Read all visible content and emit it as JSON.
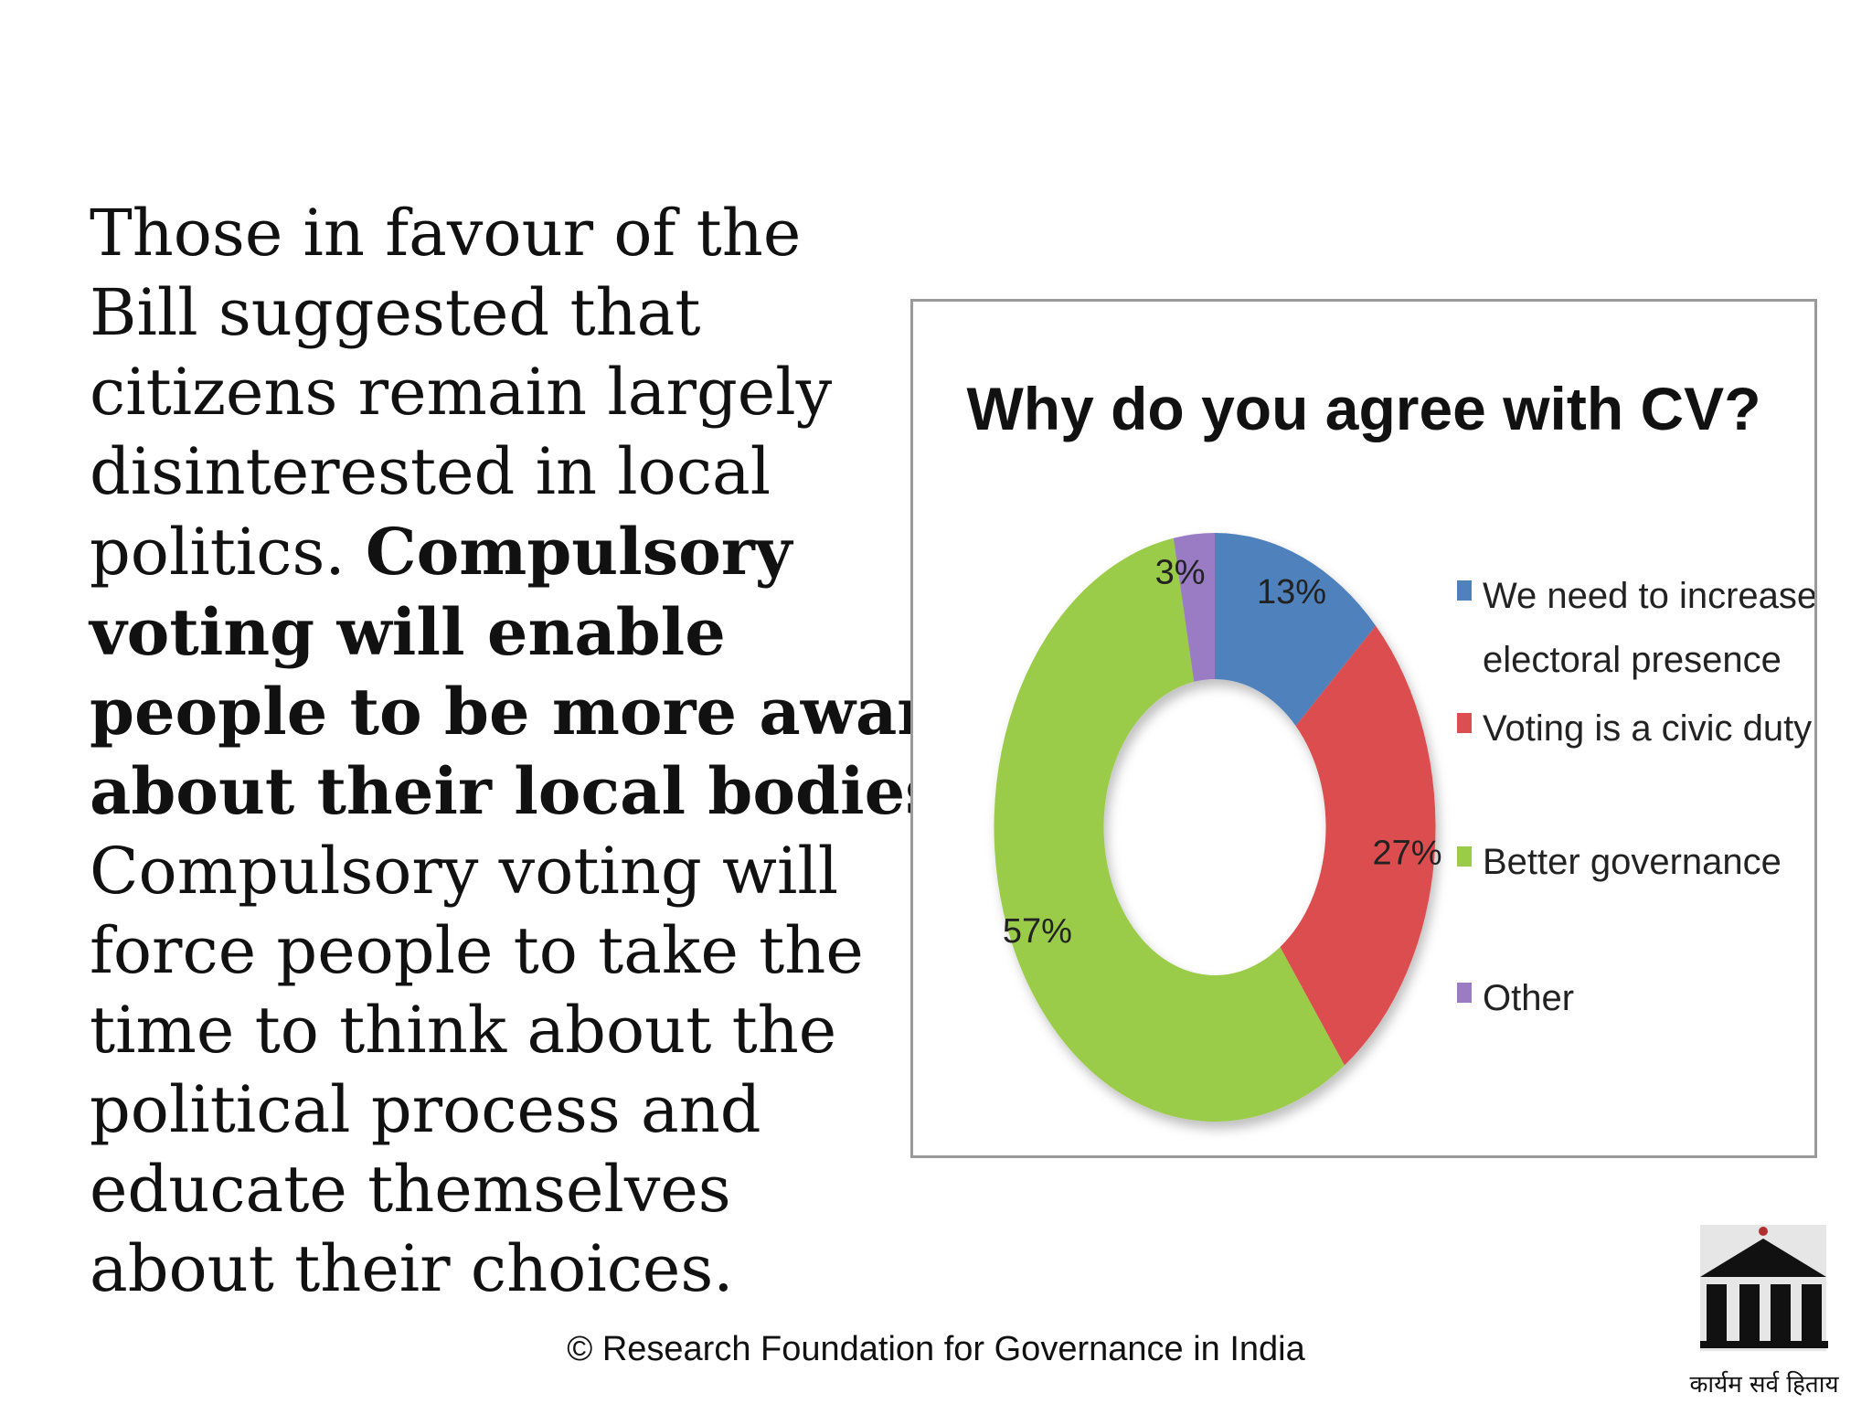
{
  "body": {
    "line1": "Those in favour of the",
    "line2": "Bill suggested that",
    "line3": "citizens remain largely",
    "line4": "disinterested in local",
    "line5_regular": "politics. ",
    "line5_bold": "Compulsory",
    "line6_bold": "voting will enable",
    "line7_bold": "people to be more aware",
    "line8_bold": "about their local bodies",
    "line8_regular": ".",
    "line9": "Compulsory voting will",
    "line10": "force people to take the",
    "line11": "time to think about the",
    "line12": "political process and",
    "line13": "educate themselves",
    "line14": "about their choices."
  },
  "chart_data": {
    "type": "pie",
    "donut": true,
    "title": "Why do you agree with CV?",
    "legend_position": "right",
    "slices": [
      {
        "legend": [
          "We need to increase",
          "electoral presence"
        ],
        "value": 13,
        "label": "13%",
        "color": "#4f81bd"
      },
      {
        "legend": [
          "Voting is a civic duty"
        ],
        "value": 27,
        "label": "27%",
        "color": "#dc4e50"
      },
      {
        "legend": [
          "Better governance"
        ],
        "value": 57,
        "label": "57%",
        "color": "#9bcc48"
      },
      {
        "legend": [
          "Other"
        ],
        "value": 3,
        "label": "3%",
        "color": "#9a7bc4"
      }
    ]
  },
  "footer": {
    "text": "© Research Foundation for Governance in India"
  },
  "logo": {
    "caption": "कार्यम सर्व हिताय",
    "icon": "pillared-building-icon"
  }
}
